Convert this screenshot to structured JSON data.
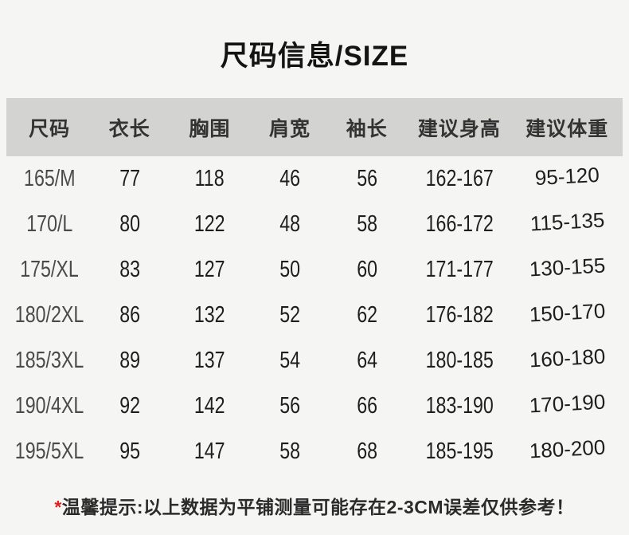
{
  "title": "尺码信息/SIZE",
  "table": {
    "headers": [
      "尺码",
      "衣长",
      "胸围",
      "肩宽",
      "袖长",
      "建议身高",
      "建议体重"
    ],
    "rows": [
      [
        "165/M",
        "77",
        "118",
        "46",
        "56",
        "162-167",
        "95-120"
      ],
      [
        "170/L",
        "80",
        "122",
        "48",
        "58",
        "166-172",
        "115-135"
      ],
      [
        "175/XL",
        "83",
        "127",
        "50",
        "60",
        "171-177",
        "130-155"
      ],
      [
        "180/2XL",
        "86",
        "132",
        "52",
        "62",
        "176-182",
        "150-170"
      ],
      [
        "185/3XL",
        "89",
        "137",
        "54",
        "64",
        "180-185",
        "160-180"
      ],
      [
        "190/4XL",
        "92",
        "142",
        "56",
        "66",
        "183-190",
        "170-190"
      ],
      [
        "195/5XL",
        "95",
        "147",
        "58",
        "68",
        "185-195",
        "180-200"
      ]
    ]
  },
  "note": {
    "asterisk": "*",
    "label": "温馨提示:",
    "text": "以上数据为平铺测量可能存在2-3CM误差仅供参考！"
  },
  "colors": {
    "background": "#f5f5f3",
    "header_bg": "#d3d3d2",
    "header_text": "#333333",
    "size_column_text": "#4a4a4a",
    "number_text": "#1e1e1e",
    "title_text": "#141414",
    "note_text": "#2b2b2b",
    "asterisk_red": "#e02020"
  }
}
